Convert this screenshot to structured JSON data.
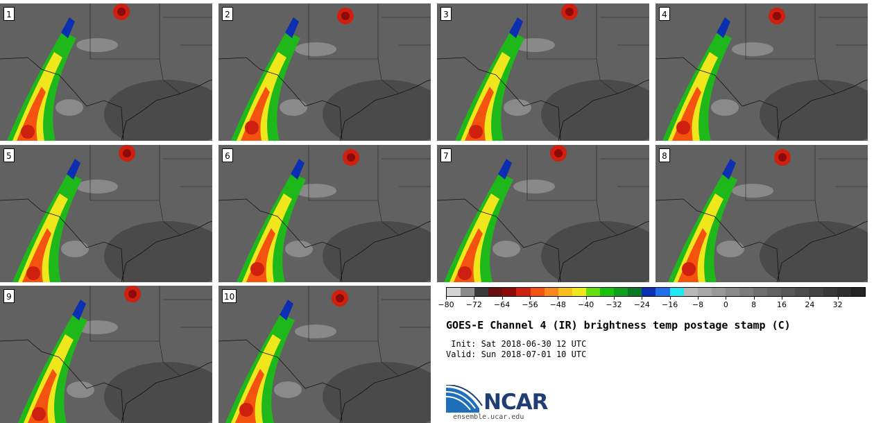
{
  "panels": [
    {
      "label": "1"
    },
    {
      "label": "2"
    },
    {
      "label": "3"
    },
    {
      "label": "4"
    },
    {
      "label": "5"
    },
    {
      "label": "6"
    },
    {
      "label": "7"
    },
    {
      "label": "8"
    },
    {
      "label": "9"
    },
    {
      "label": "10"
    }
  ],
  "colorbar": {
    "ticks": [
      "−80",
      "−72",
      "−64",
      "−56",
      "−48",
      "−40",
      "−32",
      "−24",
      "−16",
      "−8",
      "0",
      "8",
      "16",
      "24",
      "32"
    ],
    "colors": [
      "#d4d4d4",
      "#8c8c8c",
      "#3a3a3a",
      "#6a1010",
      "#8c0a0a",
      "#cf1f0f",
      "#f4520f",
      "#f8861a",
      "#f8be1a",
      "#f0e61c",
      "#62e00e",
      "#17c10c",
      "#0da01d",
      "#0a7a26",
      "#0b2fb0",
      "#1f6fe8",
      "#20e8f0",
      "#b8b8b8",
      "#a8a8a8",
      "#999999",
      "#8a8a8a",
      "#7c7c7c",
      "#6e6e6e",
      "#626262",
      "#575757",
      "#4c4c4c",
      "#424242",
      "#383838",
      "#2e2e2e",
      "#242424"
    ]
  },
  "title": "GOES-E Channel 4 (IR) brightness temp postage stamp (C)",
  "init_line": " Init: Sat 2018-06-30 12 UTC",
  "valid_line": "Valid: Sun 2018-07-01 10 UTC",
  "logo": {
    "word": "NCAR",
    "site": "ensemble.ucar.edu"
  }
}
